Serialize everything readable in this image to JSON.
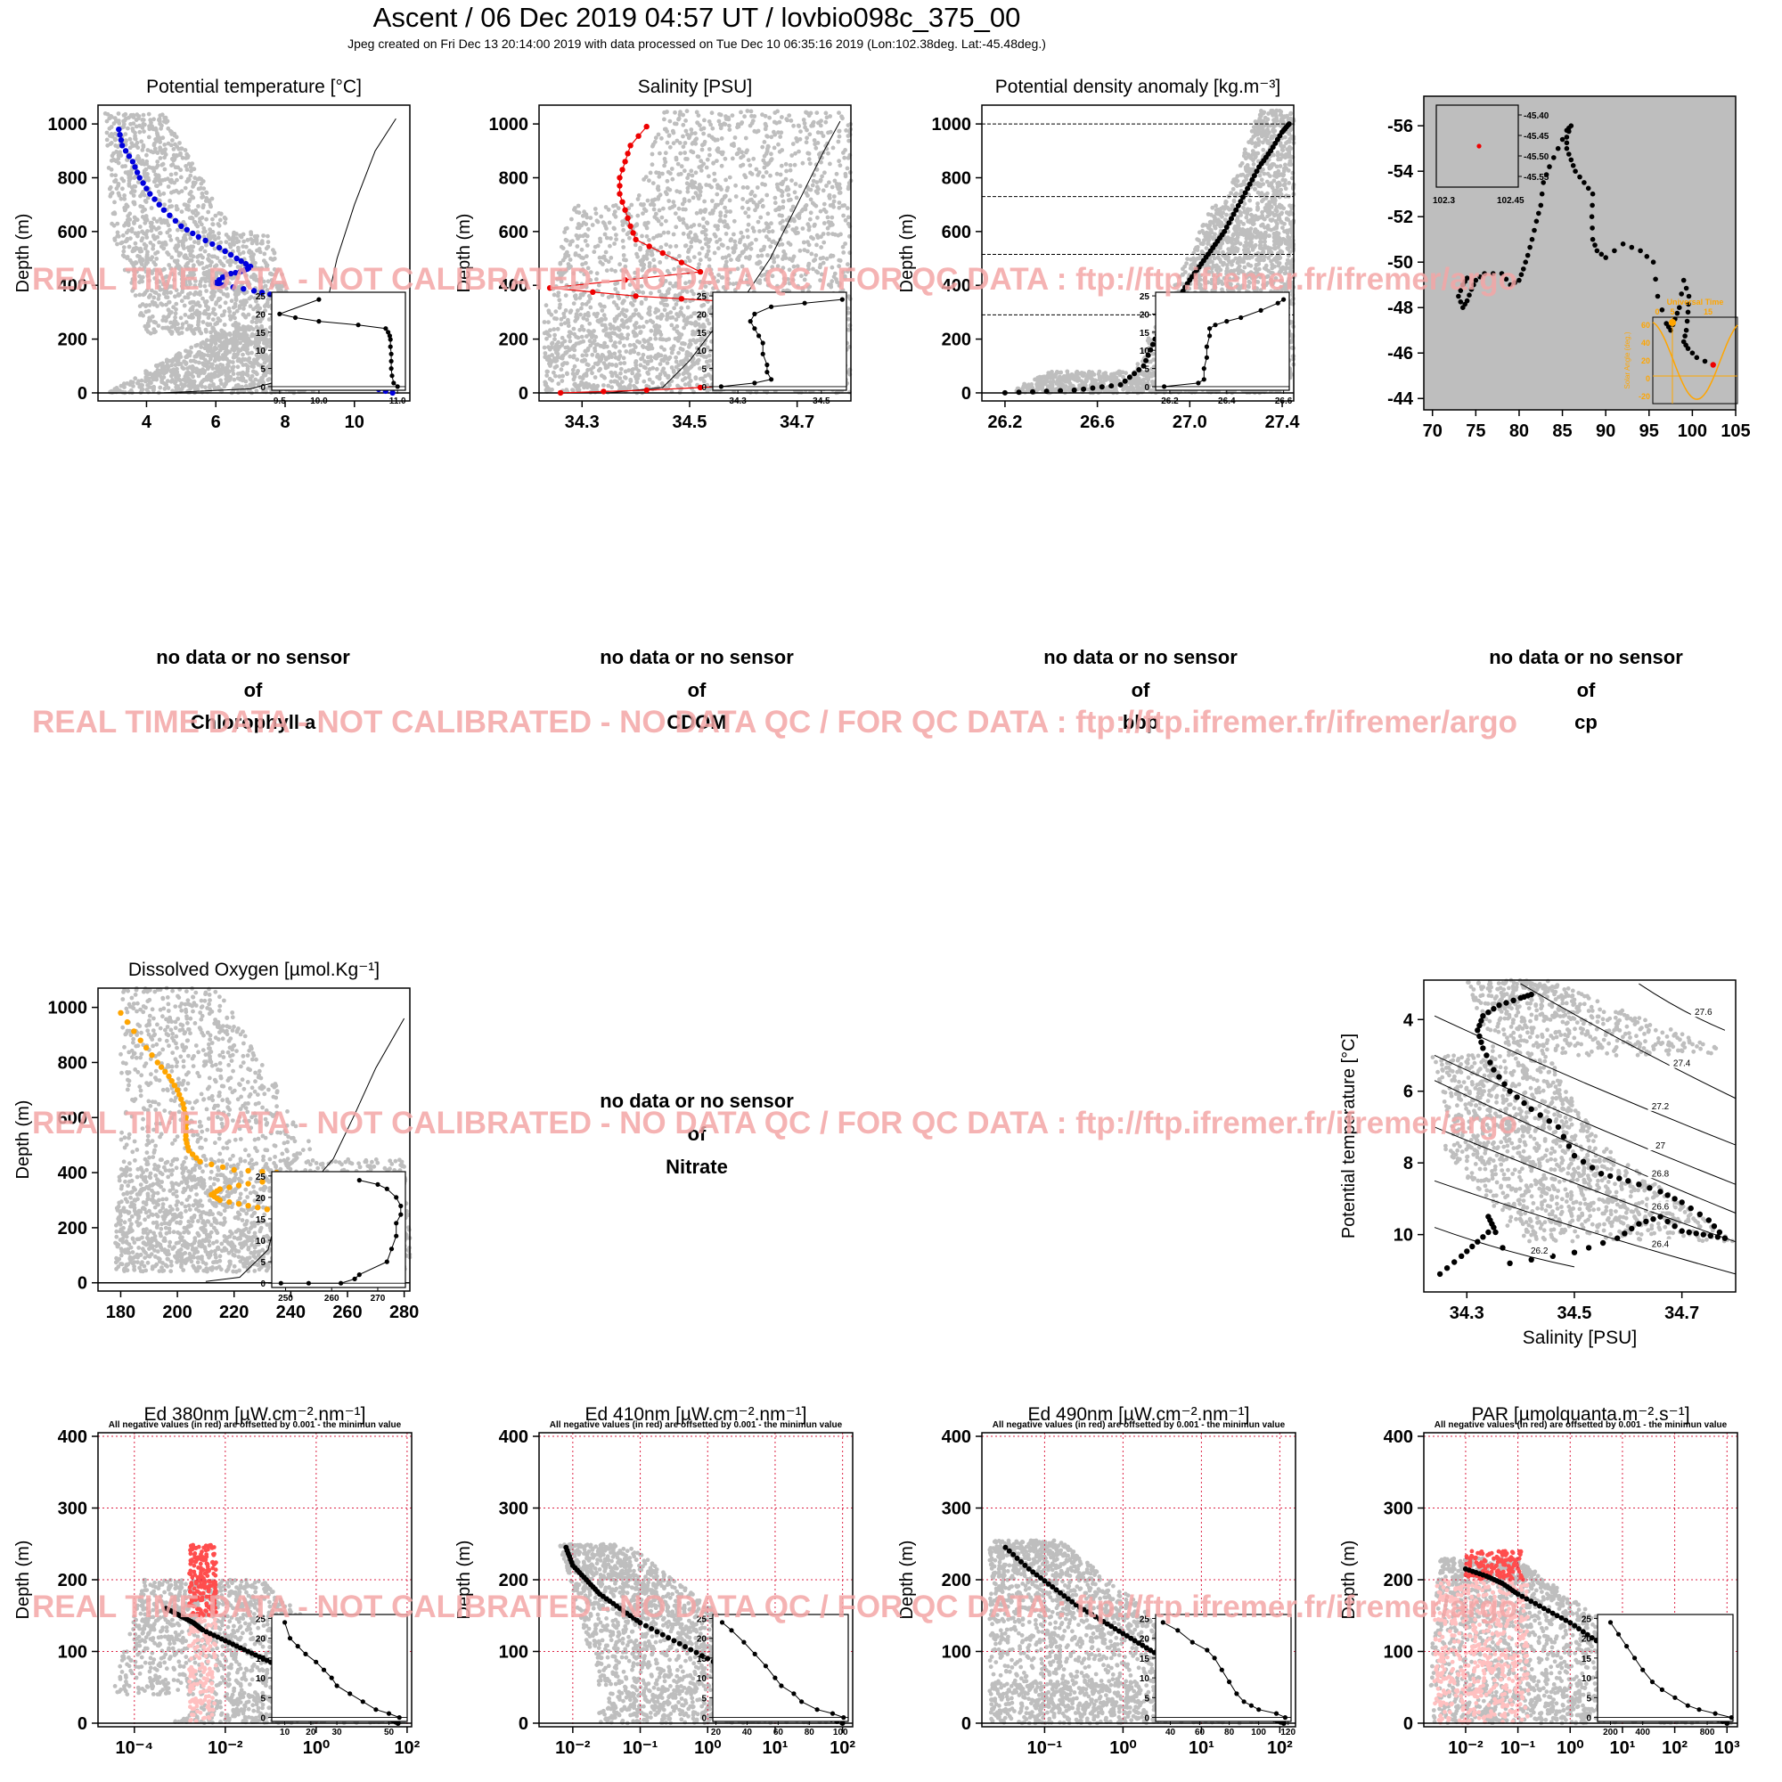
{
  "header": {
    "title": "Ascent / 06 Dec 2019 04:57 UT /  lovbio098c_375_00",
    "subtitle": "Jpeg created on Fri Dec 13 20:14:00 2019 with data processed on Tue Dec 10 06:35:16 2019 (Lon:102.38deg. Lat:-45.48deg.)"
  },
  "watermark": "REAL TIME DATA - NOT CALIBRATED - NO DATA QC   /  FOR QC DATA : ftp://ftp.ifremer.fr/ifremer/argo",
  "depth_label": "Depth (m)",
  "no_data": {
    "line1": "no data or no sensor",
    "line2": "of",
    "chl": "Chlorophyll a",
    "cdom": "CDOM",
    "bbp": "bbp",
    "cp": "cp",
    "nitrate": "Nitrate"
  },
  "light_note": "All negative values (in red) are offsetted by 0.001 - the minimun value",
  "map_inset": {
    "lat_ticks": [
      "-45.40",
      "-45.45",
      "-45.50",
      "-45.55"
    ],
    "lon_ticks": [
      "102.3",
      "102.45"
    ]
  },
  "solar_inset": {
    "title": "Universal Time",
    "ylabel": "Solar Angle (deg.)",
    "x_ticks": [
      "0",
      "5",
      "15"
    ],
    "y_ticks": [
      "60",
      "40",
      "20",
      "0",
      "-20"
    ]
  },
  "ts_isopycnals": [
    "26.2",
    "26.4",
    "26.6",
    "26.8",
    "27",
    "27.2",
    "27.4",
    "27.6"
  ],
  "colors": {
    "temp": "#0000dd",
    "sal": "#ee0000",
    "oxy": "#ffa500",
    "profile": "#000000",
    "cloud": "#bebebe",
    "watermark": "#f3a6a6",
    "negative": "#ff4d4d",
    "negative_light": "#ffc0c0"
  },
  "chart_data": [
    {
      "id": "temp",
      "type": "scatter",
      "title": "Potential temperature [°C]",
      "ylabel": "Depth (m)",
      "x_ticks": [
        "4",
        "6",
        "8",
        "10"
      ],
      "y_ticks": [
        "0",
        "200",
        "400",
        "600",
        "800",
        "1000"
      ],
      "xlim": [
        2.6,
        11.6
      ],
      "ylim": [
        1070,
        -30
      ],
      "x": [
        11.1,
        10.5,
        9.8,
        9.5,
        10.0,
        10.0,
        9.9,
        9.6,
        9.3,
        9.0,
        8.5,
        7.8,
        7.1,
        6.2,
        6.0,
        6.3,
        6.7,
        6.9,
        7.0,
        6.6,
        6.1,
        5.5,
        5.0,
        4.5,
        4.1,
        3.8,
        3.6,
        3.3,
        3.2
      ],
      "y": [
        0,
        20,
        40,
        60,
        90,
        120,
        160,
        200,
        240,
        280,
        320,
        360,
        380,
        400,
        410,
        440,
        450,
        460,
        470,
        500,
        540,
        580,
        620,
        680,
        740,
        800,
        860,
        920,
        980
      ],
      "inset": {
        "x_ticks": [
          "9.5",
          "10.0",
          "11.0"
        ],
        "y_ticks": [
          "0",
          "5",
          "10",
          "15",
          "20",
          "25"
        ],
        "xlim": [
          9.4,
          11.1
        ],
        "ylim": [
          26,
          -1
        ],
        "x": [
          11.0,
          10.95,
          10.93,
          10.92,
          10.92,
          10.92,
          10.91,
          10.91,
          10.9,
          10.88,
          10.85,
          10.5,
          10.0,
          9.7,
          9.5,
          10.0
        ],
        "y": [
          0,
          1,
          3,
          5,
          7,
          9,
          11,
          13,
          14,
          15,
          16,
          17,
          18,
          19,
          20,
          24
        ]
      }
    },
    {
      "id": "sal",
      "type": "scatter",
      "title": "Salinity [PSU]",
      "ylabel": "Depth (m)",
      "x_ticks": [
        "34.3",
        "34.5",
        "34.7"
      ],
      "y_ticks": [
        "0",
        "200",
        "400",
        "600",
        "800",
        "1000"
      ],
      "xlim": [
        34.22,
        34.8
      ],
      "ylim": [
        1070,
        -30
      ],
      "x": [
        34.26,
        34.42,
        34.62,
        34.68,
        34.77,
        34.76,
        34.68,
        34.63,
        34.62,
        34.64,
        34.6,
        34.57,
        34.4,
        34.24,
        34.52,
        34.45,
        34.4,
        34.39,
        34.38,
        34.37,
        34.37,
        34.38,
        34.39,
        34.42
      ],
      "y": [
        0,
        10,
        30,
        60,
        70,
        100,
        130,
        180,
        220,
        260,
        300,
        340,
        360,
        390,
        450,
        520,
        570,
        620,
        680,
        740,
        800,
        860,
        920,
        990
      ],
      "inset": {
        "x_ticks": [
          "34.3",
          "34.5"
        ],
        "y_ticks": [
          "0",
          "5",
          "10",
          "15",
          "20",
          "25"
        ],
        "xlim": [
          34.24,
          34.56
        ],
        "ylim": [
          26,
          -1
        ],
        "x": [
          34.26,
          34.34,
          34.38,
          34.37,
          34.37,
          34.36,
          34.36,
          34.35,
          34.34,
          34.33,
          34.34,
          34.38,
          34.46,
          34.55
        ],
        "y": [
          0,
          1,
          2,
          4,
          6,
          9,
          12,
          14,
          16,
          18,
          20,
          22,
          23,
          24
        ]
      }
    },
    {
      "id": "dens",
      "type": "scatter",
      "title": "Potential density anomaly [kg.m⁻³]",
      "ylabel": "Depth (m)",
      "x_ticks": [
        "26.2",
        "26.6",
        "27.0",
        "27.4"
      ],
      "y_ticks": [
        "0",
        "200",
        "400",
        "600",
        "800",
        "1000"
      ],
      "xlim": [
        26.1,
        27.45
      ],
      "ylim": [
        1070,
        -30
      ],
      "hlines": [
        0,
        290,
        515,
        730,
        1000
      ],
      "x": [
        26.2,
        26.5,
        26.7,
        26.8,
        26.85,
        26.9,
        26.95,
        27.0,
        27.05,
        27.1,
        27.15,
        27.2,
        27.25,
        27.3,
        27.35,
        27.4,
        27.43
      ],
      "y": [
        0,
        10,
        30,
        100,
        200,
        280,
        350,
        420,
        480,
        540,
        600,
        680,
        760,
        840,
        900,
        970,
        1000
      ],
      "inset": {
        "x_ticks": [
          "26.2",
          "26.4",
          "26.6"
        ],
        "y_ticks": [
          "0",
          "5",
          "10",
          "15",
          "20",
          "25"
        ],
        "xlim": [
          26.15,
          26.62
        ],
        "ylim": [
          26,
          -1
        ],
        "x": [
          26.18,
          26.3,
          26.32,
          26.32,
          26.33,
          26.33,
          26.34,
          26.34,
          26.36,
          26.4,
          26.45,
          26.52,
          26.58,
          26.6
        ],
        "y": [
          0,
          1,
          2,
          5,
          8,
          11,
          14,
          16,
          17,
          18,
          19,
          21,
          23,
          24
        ]
      }
    },
    {
      "id": "map",
      "type": "scatter",
      "title": "",
      "x_ticks": [
        "70",
        "75",
        "80",
        "85",
        "90",
        "95",
        "100",
        "105"
      ],
      "y_ticks": [
        "-44",
        "-46",
        "-48",
        "-50",
        "-52",
        "-54",
        "-56"
      ],
      "xlim": [
        69,
        105
      ],
      "ylim": [
        -57.3,
        -43.5
      ],
      "x": [
        102.4,
        100.5,
        99.5,
        99,
        99.3,
        99.5,
        99.6,
        99,
        98.5,
        98,
        97.5,
        97,
        96,
        95.5,
        94,
        92,
        90,
        89,
        88.5,
        88.4,
        88.5,
        87.5,
        86.5,
        86,
        85.5,
        85.5,
        86,
        85.5,
        84.5,
        83.5,
        82.8,
        82.5,
        82,
        81.5,
        81,
        80.5,
        80,
        79,
        78,
        76,
        75,
        74.5,
        74,
        73.5,
        73,
        73.5,
        74
      ],
      "y": [
        -45.48,
        -45.8,
        -46.2,
        -46.5,
        -47,
        -47.8,
        -48.5,
        -49.2,
        -48,
        -47.5,
        -47,
        -47.3,
        -48.5,
        -50,
        -50.5,
        -50.8,
        -50.2,
        -50.5,
        -51,
        -52,
        -53,
        -53.5,
        -54,
        -54.5,
        -55,
        -55.5,
        -56,
        -55.8,
        -55,
        -54.2,
        -53.5,
        -52.5,
        -51.8,
        -51,
        -50.3,
        -49.7,
        -49.2,
        -49,
        -49.5,
        -49.5,
        -49.2,
        -48.8,
        -48.3,
        -48,
        -48.5,
        -49,
        -49.3
      ]
    },
    {
      "id": "oxy",
      "type": "scatter",
      "title": "Dissolved Oxygen [µmol.Kg⁻¹]",
      "ylabel": "Depth (m)",
      "x_ticks": [
        "180",
        "200",
        "220",
        "240",
        "260",
        "280"
      ],
      "y_ticks": [
        "0",
        "200",
        "400",
        "600",
        "800",
        "1000"
      ],
      "xlim": [
        172,
        282
      ],
      "ylim": [
        1070,
        -30
      ],
      "x": [
        270,
        260,
        250,
        248,
        247,
        247,
        246,
        245,
        235,
        225,
        215,
        212,
        215,
        225,
        240,
        235,
        220,
        208,
        204,
        203,
        203,
        203,
        202,
        200,
        197,
        193,
        187,
        180
      ],
      "y": [
        0,
        20,
        60,
        100,
        140,
        180,
        210,
        240,
        260,
        280,
        300,
        320,
        340,
        360,
        380,
        400,
        410,
        440,
        480,
        520,
        560,
        600,
        650,
        700,
        750,
        800,
        880,
        980
      ],
      "inset": {
        "x_ticks": [
          "250",
          "260",
          "270"
        ],
        "y_ticks": [
          "0",
          "5",
          "10",
          "15",
          "20",
          "25"
        ],
        "xlim": [
          247,
          276
        ],
        "ylim": [
          26,
          -1
        ],
        "x": [
          249,
          255,
          262,
          265,
          266,
          272,
          273,
          274,
          274,
          275,
          275,
          274,
          272,
          270,
          266
        ],
        "y": [
          0,
          0,
          0,
          1,
          2,
          5,
          8,
          11,
          14,
          16,
          18,
          20,
          22,
          23,
          24
        ]
      }
    },
    {
      "id": "ts",
      "type": "scatter",
      "title": "",
      "xlabel": "Salinity [PSU]",
      "ylabel": "Potential temperature [°C]",
      "x_ticks": [
        "34.3",
        "34.5",
        "34.7"
      ],
      "y_ticks": [
        "4",
        "6",
        "8",
        "10"
      ],
      "xlim": [
        34.22,
        34.8
      ],
      "ylim": [
        2.9,
        11.6
      ],
      "x": [
        34.25,
        34.29,
        34.32,
        34.35,
        34.34,
        34.38,
        34.5,
        34.58,
        34.62,
        34.66,
        34.7,
        34.74,
        34.78,
        34.75,
        34.7,
        34.66,
        34.6,
        34.55,
        34.5,
        34.47,
        34.42,
        34.38,
        34.35,
        34.33,
        34.32,
        34.33,
        34.36,
        34.4,
        34.42
      ],
      "y": [
        11.1,
        10.6,
        10.2,
        9.8,
        9.5,
        10.8,
        10.5,
        10.1,
        9.7,
        9.5,
        9.9,
        10.0,
        10.1,
        9.6,
        9.1,
        8.8,
        8.5,
        8.3,
        7.8,
        7.0,
        6.5,
        6.0,
        5.4,
        4.8,
        4.3,
        3.9,
        3.6,
        3.4,
        3.3
      ]
    },
    {
      "id": "ed380",
      "type": "scatter",
      "title": "Ed 380nm [µW.cm⁻².nm⁻¹]",
      "ylabel": "Depth (m)",
      "log_x": true,
      "x_ticks": [
        "10⁻⁴",
        "10⁻²",
        "10⁰",
        "10²"
      ],
      "y_ticks": [
        "0",
        "100",
        "200",
        "300",
        "400"
      ],
      "xlim": [
        -4.8,
        2.1
      ],
      "ylim": [
        405,
        -5
      ],
      "x": [
        1.8,
        1.5,
        1.0,
        0.5,
        0,
        -0.5,
        -1,
        -1.5,
        -2,
        -2.5,
        -2.7,
        -3.0,
        -3.3
      ],
      "y": [
        0,
        10,
        25,
        40,
        55,
        70,
        85,
        100,
        115,
        130,
        140,
        150,
        160
      ],
      "inset": {
        "x_ticks": [
          "10",
          "20",
          "30",
          "50"
        ],
        "y_ticks": [
          "0",
          "5",
          "10",
          "15",
          "20",
          "25"
        ],
        "xlim": [
          5,
          57
        ],
        "ylim": [
          26,
          -1
        ],
        "x": [
          54,
          50,
          45,
          40,
          35,
          30,
          28,
          25,
          22,
          18,
          15,
          12,
          10
        ],
        "y": [
          0,
          1,
          2,
          4,
          6,
          8,
          10,
          12,
          14,
          16,
          18,
          20,
          24
        ]
      }
    },
    {
      "id": "ed410",
      "type": "scatter",
      "title": "Ed 410nm [µW.cm⁻².nm⁻¹]",
      "ylabel": "Depth (m)",
      "log_x": true,
      "x_ticks": [
        "10⁻²",
        "10⁻¹",
        "10⁰",
        "10¹",
        "10²"
      ],
      "y_ticks": [
        "0",
        "100",
        "200",
        "300",
        "400"
      ],
      "xlim": [
        -2.5,
        2.15
      ],
      "ylim": [
        405,
        -5
      ],
      "x": [
        2.0,
        1.5,
        1.0,
        0.5,
        0,
        -0.5,
        -1.0,
        -1.3,
        -1.6,
        -1.8,
        -2.0,
        -2.1
      ],
      "y": [
        0,
        15,
        40,
        65,
        90,
        115,
        140,
        160,
        180,
        200,
        220,
        245
      ],
      "inset": {
        "x_ticks": [
          "20",
          "40",
          "60",
          "80",
          "100"
        ],
        "y_ticks": [
          "0",
          "5",
          "10",
          "15",
          "20",
          "25"
        ],
        "xlim": [
          18,
          105
        ],
        "ylim": [
          26,
          -1
        ],
        "x": [
          102,
          95,
          85,
          75,
          70,
          62,
          58,
          52,
          45,
          38,
          30,
          24
        ],
        "y": [
          0,
          1,
          2,
          4,
          6,
          8,
          10,
          13,
          16,
          19,
          22,
          24
        ]
      }
    },
    {
      "id": "ed490",
      "type": "scatter",
      "title": "Ed 490nm [µW.cm⁻².nm⁻¹]",
      "ylabel": "Depth (m)",
      "log_x": true,
      "x_ticks": [
        "10⁻¹",
        "10⁰",
        "10¹",
        "10²"
      ],
      "y_ticks": [
        "0",
        "100",
        "200",
        "300",
        "400"
      ],
      "xlim": [
        -1.8,
        2.2
      ],
      "ylim": [
        405,
        -5
      ],
      "x": [
        2.05,
        1.8,
        1.5,
        1.2,
        0.9,
        0.6,
        0.3,
        0,
        -0.3,
        -0.6,
        -0.9,
        -1.2,
        -1.5
      ],
      "y": [
        0,
        10,
        25,
        45,
        65,
        85,
        105,
        125,
        145,
        165,
        190,
        215,
        245
      ],
      "inset": {
        "x_ticks": [
          "40",
          "60",
          "80",
          "100",
          "120"
        ],
        "y_ticks": [
          "0",
          "5",
          "10",
          "15",
          "20",
          "25"
        ],
        "xlim": [
          30,
          122
        ],
        "ylim": [
          26,
          -1
        ],
        "x": [
          118,
          112,
          100,
          95,
          90,
          85,
          80,
          75,
          70,
          65,
          55,
          45,
          35
        ],
        "y": [
          0,
          1,
          2,
          3,
          4,
          6,
          9,
          12,
          15,
          17,
          19,
          22,
          24
        ]
      }
    },
    {
      "id": "par",
      "type": "scatter",
      "title": "PAR [µmolquanta.m⁻².s⁻¹]",
      "ylabel": "Depth (m)",
      "log_x": true,
      "x_ticks": [
        "10⁻²",
        "10⁻¹",
        "10⁰",
        "10¹",
        "10²",
        "10³"
      ],
      "y_ticks": [
        "0",
        "100",
        "200",
        "300",
        "400"
      ],
      "xlim": [
        -2.8,
        3.2
      ],
      "ylim": [
        405,
        -5
      ],
      "x": [
        3.0,
        2.5,
        2.0,
        1.5,
        1.0,
        0.5,
        0,
        -0.5,
        -1.0,
        -1.3,
        -1.6,
        -2.0
      ],
      "y": [
        0,
        15,
        40,
        65,
        90,
        115,
        140,
        160,
        180,
        195,
        205,
        215
      ],
      "inset": {
        "x_ticks": [
          "200",
          "400",
          "800"
        ],
        "y_ticks": [
          "0",
          "5",
          "10",
          "15",
          "20",
          "25"
        ],
        "xlim": [
          120,
          960
        ],
        "ylim": [
          26,
          -1
        ],
        "x": [
          950,
          850,
          750,
          680,
          600,
          520,
          460,
          400,
          350,
          300,
          250,
          200
        ],
        "y": [
          0,
          1,
          2,
          3,
          5,
          7,
          9,
          12,
          15,
          18,
          21,
          24
        ]
      }
    }
  ]
}
